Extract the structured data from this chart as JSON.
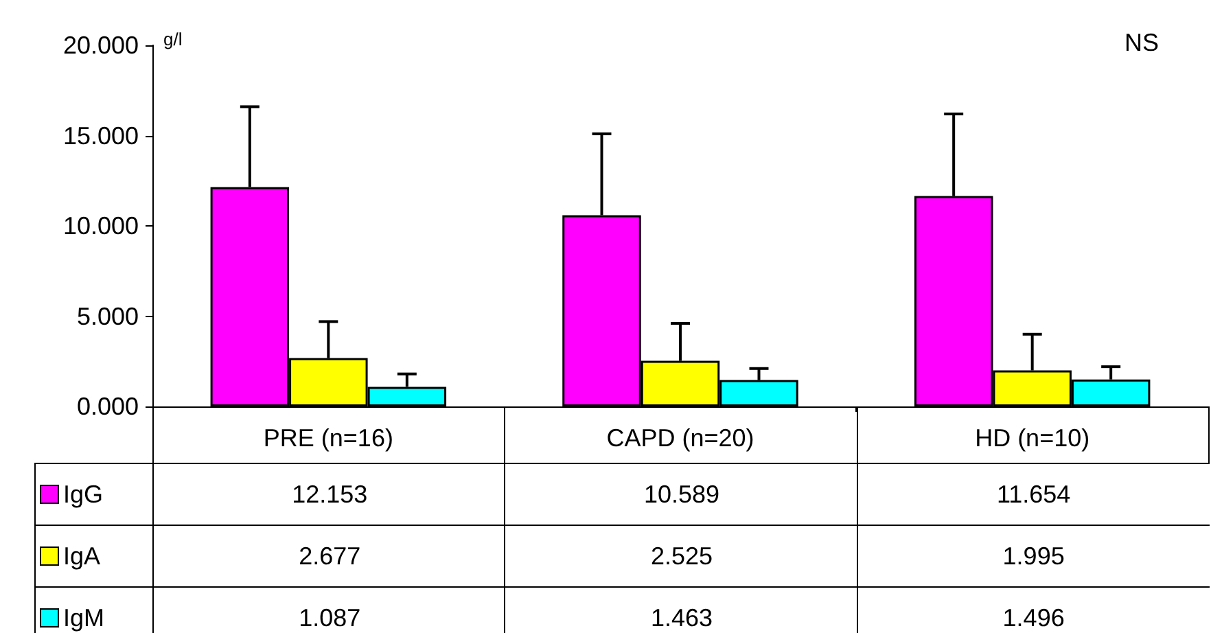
{
  "chart_data": {
    "type": "bar",
    "ylabel": "g/l",
    "categories": [
      "PRE (n=16)",
      "CAPD (n=20)",
      "HD (n=10)"
    ],
    "series": [
      {
        "name": "IgG",
        "color": "#ff00ff",
        "values": [
          12.153,
          10.589,
          11.654
        ],
        "errors": [
          [
            12.153,
            16.6
          ],
          [
            10.589,
            15.1
          ],
          [
            11.654,
            16.2
          ]
        ]
      },
      {
        "name": "IgA",
        "color": "#ffff00",
        "values": [
          2.677,
          2.525,
          1.995
        ],
        "errors": [
          [
            2.677,
            4.7
          ],
          [
            2.525,
            4.6
          ],
          [
            1.995,
            4.0
          ]
        ]
      },
      {
        "name": "IgM",
        "color": "#00ffff",
        "values": [
          1.087,
          1.463,
          1.496
        ],
        "errors": [
          [
            1.087,
            1.8
          ],
          [
            1.463,
            2.1
          ],
          [
            1.496,
            2.2
          ]
        ]
      }
    ],
    "ylim": [
      0,
      20
    ],
    "yticks": [
      {
        "value": 0,
        "label": "0.000"
      },
      {
        "value": 5,
        "label": "5.000"
      },
      {
        "value": 10,
        "label": "10.000"
      },
      {
        "value": 15,
        "label": "15.000"
      },
      {
        "value": 20,
        "label": "20.000"
      }
    ],
    "annotations": [
      "NS"
    ],
    "data_labels": true,
    "legend": "bottom",
    "grid": false
  }
}
